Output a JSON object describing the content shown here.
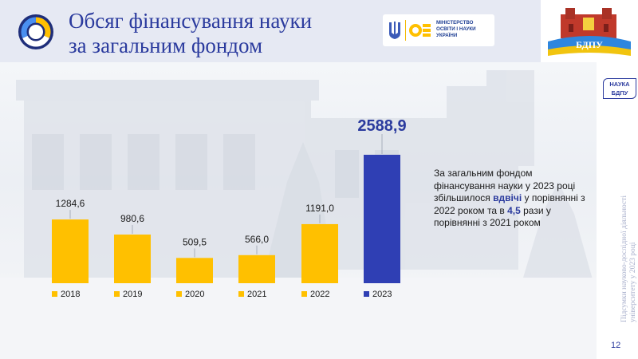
{
  "header": {
    "title_line1": "Обсяг фінансування науки",
    "title_line2": "за загальним фондом",
    "ministry_text": "МІНІСТЕРСТВО ОСВІТИ І НАУКИ УКРАЇНИ",
    "university_logo_text": "БДПУ"
  },
  "sidebar": {
    "badge_line1": "НАУКА",
    "badge_line2": "БДПУ",
    "vertical_text_line1": "Підсумки науково-дослідної діяльності",
    "vertical_text_line2": "університету у 2023 році",
    "page_number": "12"
  },
  "summary": {
    "part1": "За загальним фондом фінансування науки у 2023 році збільшилося ",
    "highlight1": "вдвічі",
    "part2": " у порівнянні з 2022 роком та в ",
    "highlight2": "4,5",
    "part3": " рази у порівнянні з 2021 роком"
  },
  "colors": {
    "primary": "#2b3b9e",
    "bar_yellow": "#ffc000",
    "bar_blue": "#2f3fb4"
  },
  "chart_data": {
    "type": "bar",
    "categories": [
      "2018",
      "2019",
      "2020",
      "2021",
      "2022",
      "2023"
    ],
    "values": [
      1284.6,
      980.6,
      509.5,
      566.0,
      1191.0,
      2588.9
    ],
    "value_labels": [
      "1284,6",
      "980,6",
      "509,5",
      "566,0",
      "1191,0",
      "2588,9"
    ],
    "bar_colors": [
      "#ffc000",
      "#ffc000",
      "#ffc000",
      "#ffc000",
      "#ffc000",
      "#2f3fb4"
    ],
    "ylim": [
      0,
      2588.9
    ],
    "grid": false,
    "legend": "bottom"
  }
}
